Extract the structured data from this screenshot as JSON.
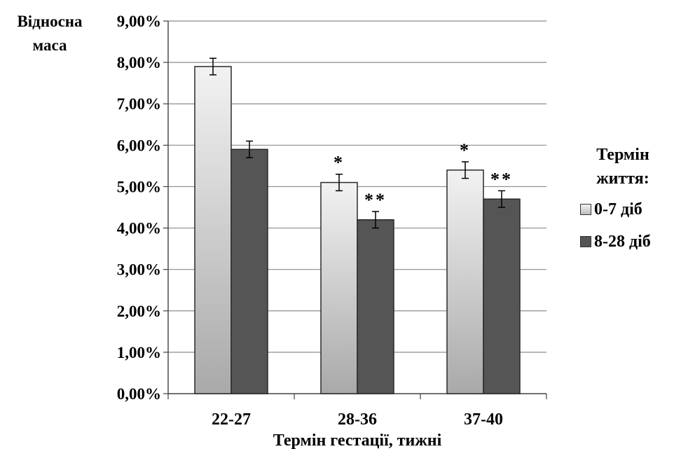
{
  "chart_data": {
    "type": "bar",
    "title": "",
    "ylabel": "Відносна маса",
    "xlabel": "Термін гестації, тижні",
    "ylim": [
      0,
      9
    ],
    "y_ticks": [
      "0,00%",
      "1,00%",
      "2,00%",
      "3,00%",
      "4,00%",
      "5,00%",
      "6,00%",
      "7,00%",
      "8,00%",
      "9,00%"
    ],
    "categories": [
      "22-27",
      "28-36",
      "37-40"
    ],
    "legend_title": "Термін життя:",
    "legend_position": "right",
    "grid": true,
    "series": [
      {
        "name": "0-7 діб",
        "values": [
          7.9,
          5.1,
          5.4
        ],
        "errors": [
          0.2,
          0.2,
          0.2
        ],
        "markers": [
          "",
          "*",
          "*"
        ],
        "color": "#d6d6d6"
      },
      {
        "name": "8-28 діб",
        "values": [
          5.9,
          4.2,
          4.7
        ],
        "errors": [
          0.2,
          0.2,
          0.2
        ],
        "markers": [
          "",
          "**",
          "**"
        ],
        "color": "#555555"
      }
    ]
  }
}
